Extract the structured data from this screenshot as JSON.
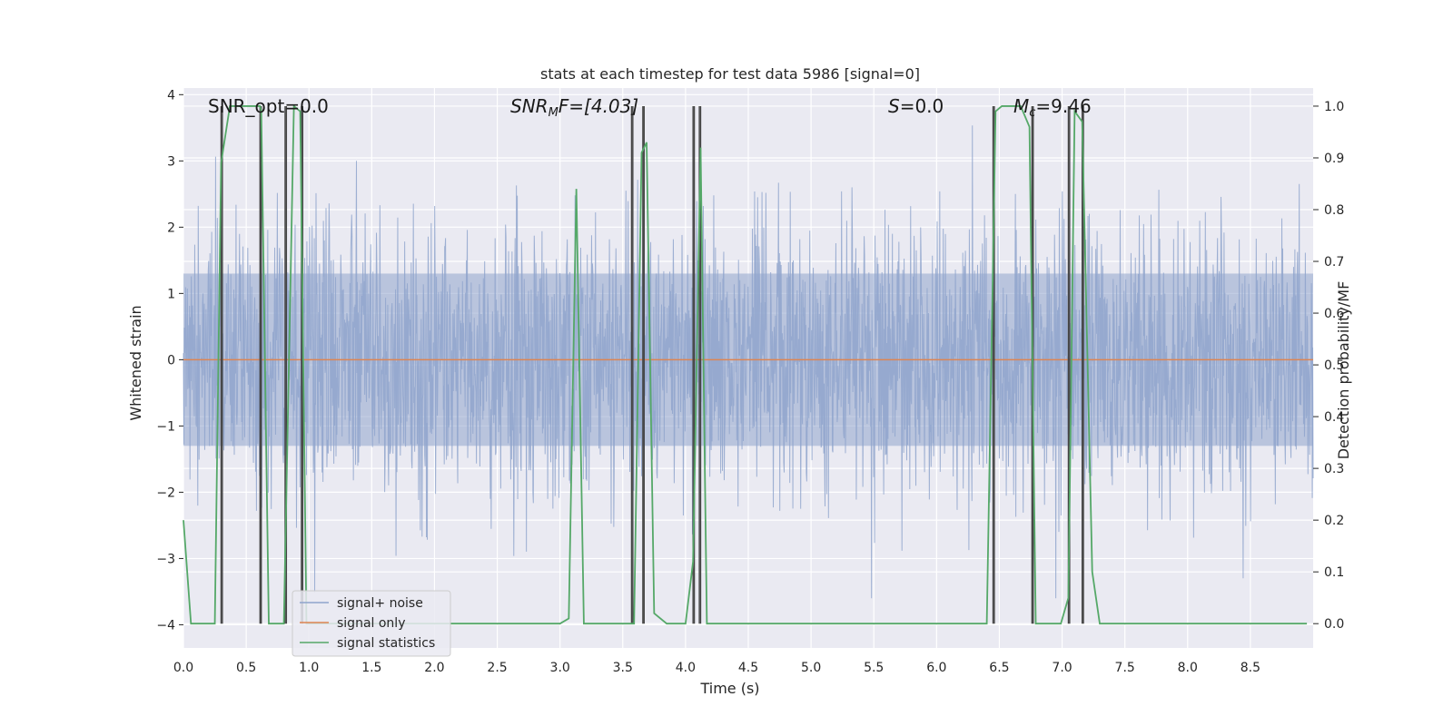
{
  "chart_data": {
    "type": "line",
    "title": "stats at each timestep for test data 5986 [signal=0]",
    "xlabel": "Time (s)",
    "ylabel_left": "Whitened strain",
    "ylabel_right": "Detection probability/MF",
    "xlim": [
      0.0,
      9.0
    ],
    "ylim_left": [
      -4.35,
      4.1
    ],
    "ylim_right": [
      -0.047,
      1.035
    ],
    "xticks": [
      "0.0",
      "0.5",
      "1.0",
      "1.5",
      "2.0",
      "2.5",
      "3.0",
      "3.5",
      "4.0",
      "4.5",
      "5.0",
      "5.5",
      "6.0",
      "6.5",
      "7.0",
      "7.5",
      "8.0",
      "8.5"
    ],
    "yticks_left": [
      "4",
      "3",
      "2",
      "1",
      "0",
      "−1",
      "−2",
      "−3",
      "−4"
    ],
    "yticks_right": [
      "1.0",
      "0.9",
      "0.8",
      "0.7",
      "0.6",
      "0.5",
      "0.4",
      "0.3",
      "0.2",
      "0.1",
      "0.0"
    ],
    "annotations": {
      "snr_opt": "SNR_opt=0.0",
      "snr_mf_base": "SNR",
      "snr_mf_sub": "M",
      "snr_mf_rest": "F=[4.03]",
      "s_label": "S",
      "s_rest": "=0.0",
      "mc_base": "M",
      "mc_sub": "c",
      "mc_rest": "=9.46"
    },
    "series": [
      {
        "name": "signal+ noise",
        "color": "#8fa4cc",
        "description": "whitened noise, amplitude ~ ±1.5 typical, peaks to ~±3.7"
      },
      {
        "name": "signal only",
        "color": "#dd8452",
        "values_constant": 0.0
      },
      {
        "name": "signal statistics",
        "color": "#55a868",
        "x": [
          0.0,
          0.06,
          0.25,
          0.3,
          0.37,
          0.61,
          0.62,
          0.68,
          0.74,
          0.8,
          0.88,
          0.93,
          0.98,
          1.5,
          2.0,
          2.5,
          3.0,
          3.07,
          3.13,
          3.19,
          3.5,
          3.59,
          3.65,
          3.69,
          3.75,
          3.85,
          4.0,
          4.06,
          4.12,
          4.17,
          4.5,
          5.0,
          5.5,
          6.0,
          6.4,
          6.47,
          6.52,
          6.67,
          6.74,
          6.79,
          6.88,
          6.99,
          7.05,
          7.1,
          7.16,
          7.24,
          7.3,
          7.5,
          8.0,
          8.5,
          8.95
        ],
        "y": [
          0.2,
          0.0,
          0.0,
          0.89,
          1.0,
          1.0,
          0.99,
          0.0,
          0.0,
          0.0,
          1.0,
          0.99,
          0.0,
          0.0,
          0.0,
          0.0,
          0.0,
          0.01,
          0.84,
          0.0,
          0.0,
          0.0,
          0.91,
          0.93,
          0.02,
          0.0,
          0.0,
          0.12,
          0.92,
          0.0,
          0.0,
          0.0,
          0.0,
          0.0,
          0.0,
          0.99,
          1.0,
          1.0,
          0.96,
          0.0,
          0.0,
          0.0,
          0.05,
          0.99,
          0.97,
          0.1,
          0.0,
          0.0,
          0.0,
          0.0,
          0.0
        ]
      }
    ],
    "detection_markers": [
      [
        0.3,
        0.31
      ],
      [
        0.61,
        0.62
      ],
      [
        0.81,
        0.82
      ],
      [
        0.94,
        0.95
      ],
      [
        3.57,
        3.58
      ],
      [
        3.66,
        3.67
      ],
      [
        4.06,
        4.07
      ],
      [
        4.11,
        4.12
      ],
      [
        6.45,
        6.46
      ],
      [
        6.76,
        6.77
      ],
      [
        7.05,
        7.06
      ],
      [
        7.16,
        7.17
      ]
    ],
    "legend": {
      "position": "lower-left",
      "items": [
        "signal+ noise",
        "signal only",
        "signal statistics"
      ]
    }
  }
}
